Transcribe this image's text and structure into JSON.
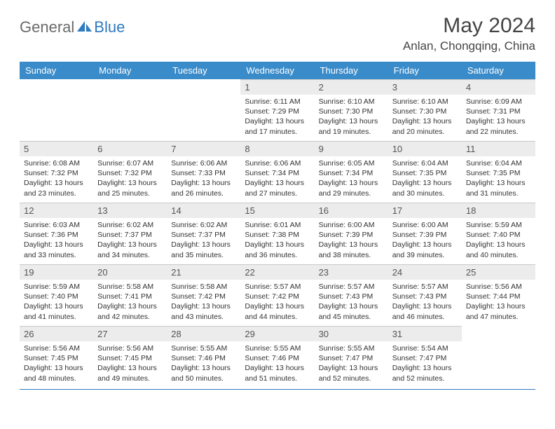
{
  "logo": {
    "general": "General",
    "blue": "Blue"
  },
  "header": {
    "title": "May 2024",
    "location": "Anlan, Chongqing, China"
  },
  "colors": {
    "header_bg": "#3a8bc9",
    "header_text": "#ffffff",
    "daynum_bg": "#ececec",
    "text": "#333333",
    "accent": "#2f7bbf"
  },
  "weekdays": [
    "Sunday",
    "Monday",
    "Tuesday",
    "Wednesday",
    "Thursday",
    "Friday",
    "Saturday"
  ],
  "grid": {
    "leading_blanks": 3,
    "days": [
      {
        "n": 1,
        "rise": "6:11 AM",
        "set": "7:29 PM",
        "dh": 13,
        "dm": 17
      },
      {
        "n": 2,
        "rise": "6:10 AM",
        "set": "7:30 PM",
        "dh": 13,
        "dm": 19
      },
      {
        "n": 3,
        "rise": "6:10 AM",
        "set": "7:30 PM",
        "dh": 13,
        "dm": 20
      },
      {
        "n": 4,
        "rise": "6:09 AM",
        "set": "7:31 PM",
        "dh": 13,
        "dm": 22
      },
      {
        "n": 5,
        "rise": "6:08 AM",
        "set": "7:32 PM",
        "dh": 13,
        "dm": 23
      },
      {
        "n": 6,
        "rise": "6:07 AM",
        "set": "7:32 PM",
        "dh": 13,
        "dm": 25
      },
      {
        "n": 7,
        "rise": "6:06 AM",
        "set": "7:33 PM",
        "dh": 13,
        "dm": 26
      },
      {
        "n": 8,
        "rise": "6:06 AM",
        "set": "7:34 PM",
        "dh": 13,
        "dm": 27
      },
      {
        "n": 9,
        "rise": "6:05 AM",
        "set": "7:34 PM",
        "dh": 13,
        "dm": 29
      },
      {
        "n": 10,
        "rise": "6:04 AM",
        "set": "7:35 PM",
        "dh": 13,
        "dm": 30
      },
      {
        "n": 11,
        "rise": "6:04 AM",
        "set": "7:35 PM",
        "dh": 13,
        "dm": 31
      },
      {
        "n": 12,
        "rise": "6:03 AM",
        "set": "7:36 PM",
        "dh": 13,
        "dm": 33
      },
      {
        "n": 13,
        "rise": "6:02 AM",
        "set": "7:37 PM",
        "dh": 13,
        "dm": 34
      },
      {
        "n": 14,
        "rise": "6:02 AM",
        "set": "7:37 PM",
        "dh": 13,
        "dm": 35
      },
      {
        "n": 15,
        "rise": "6:01 AM",
        "set": "7:38 PM",
        "dh": 13,
        "dm": 36
      },
      {
        "n": 16,
        "rise": "6:00 AM",
        "set": "7:39 PM",
        "dh": 13,
        "dm": 38
      },
      {
        "n": 17,
        "rise": "6:00 AM",
        "set": "7:39 PM",
        "dh": 13,
        "dm": 39
      },
      {
        "n": 18,
        "rise": "5:59 AM",
        "set": "7:40 PM",
        "dh": 13,
        "dm": 40
      },
      {
        "n": 19,
        "rise": "5:59 AM",
        "set": "7:40 PM",
        "dh": 13,
        "dm": 41
      },
      {
        "n": 20,
        "rise": "5:58 AM",
        "set": "7:41 PM",
        "dh": 13,
        "dm": 42
      },
      {
        "n": 21,
        "rise": "5:58 AM",
        "set": "7:42 PM",
        "dh": 13,
        "dm": 43
      },
      {
        "n": 22,
        "rise": "5:57 AM",
        "set": "7:42 PM",
        "dh": 13,
        "dm": 44
      },
      {
        "n": 23,
        "rise": "5:57 AM",
        "set": "7:43 PM",
        "dh": 13,
        "dm": 45
      },
      {
        "n": 24,
        "rise": "5:57 AM",
        "set": "7:43 PM",
        "dh": 13,
        "dm": 46
      },
      {
        "n": 25,
        "rise": "5:56 AM",
        "set": "7:44 PM",
        "dh": 13,
        "dm": 47
      },
      {
        "n": 26,
        "rise": "5:56 AM",
        "set": "7:45 PM",
        "dh": 13,
        "dm": 48
      },
      {
        "n": 27,
        "rise": "5:56 AM",
        "set": "7:45 PM",
        "dh": 13,
        "dm": 49
      },
      {
        "n": 28,
        "rise": "5:55 AM",
        "set": "7:46 PM",
        "dh": 13,
        "dm": 50
      },
      {
        "n": 29,
        "rise": "5:55 AM",
        "set": "7:46 PM",
        "dh": 13,
        "dm": 51
      },
      {
        "n": 30,
        "rise": "5:55 AM",
        "set": "7:47 PM",
        "dh": 13,
        "dm": 52
      },
      {
        "n": 31,
        "rise": "5:54 AM",
        "set": "7:47 PM",
        "dh": 13,
        "dm": 52
      }
    ]
  },
  "labels": {
    "sunrise": "Sunrise:",
    "sunset": "Sunset:",
    "daylight": "Daylight:",
    "hours_and": "hours and",
    "minutes": "minutes."
  }
}
